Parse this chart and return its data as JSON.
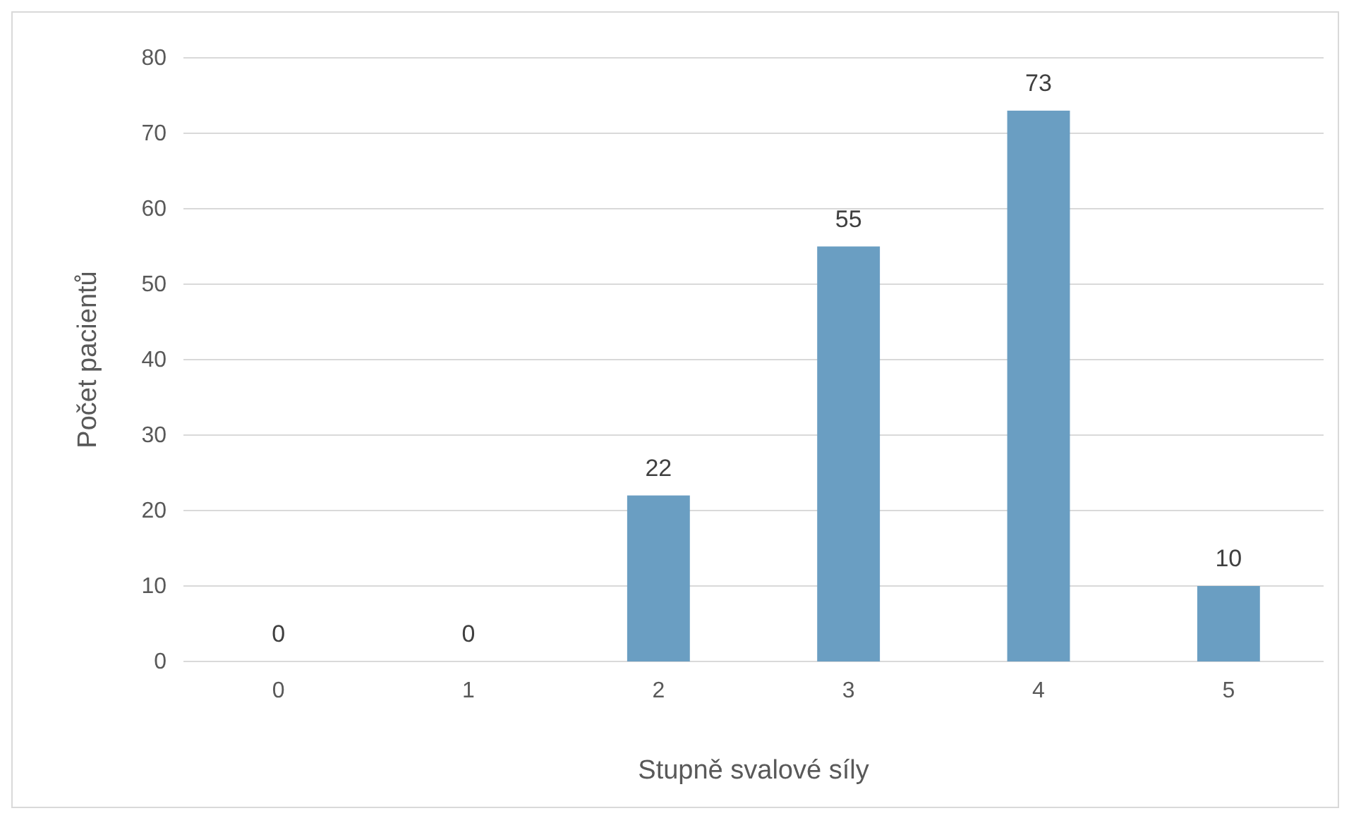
{
  "chart_data": {
    "type": "bar",
    "xlabel": "Stupně svalové síly",
    "ylabel": "Počet pacientů",
    "categories": [
      "0",
      "1",
      "2",
      "3",
      "4",
      "5"
    ],
    "values": [
      0,
      0,
      22,
      55,
      73,
      10
    ],
    "color": "#6a9ec2",
    "ylim": [
      0,
      80
    ],
    "yticks": [
      0,
      10,
      20,
      30,
      40,
      50,
      60,
      70,
      80
    ],
    "grid": "y",
    "data_labels": true
  }
}
